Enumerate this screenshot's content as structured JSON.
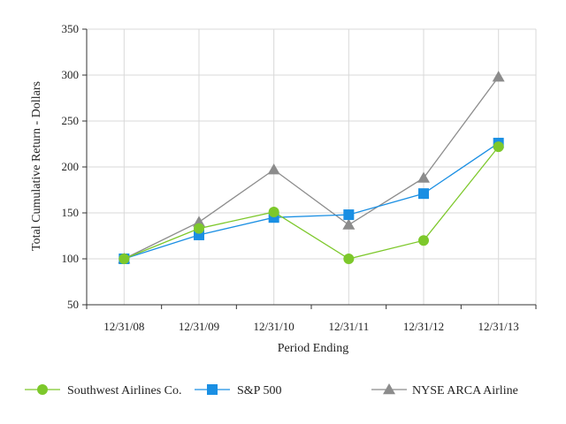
{
  "chart_data": {
    "type": "line",
    "categories": [
      "12/31/08",
      "12/31/09",
      "12/31/10",
      "12/31/11",
      "12/31/12",
      "12/31/13"
    ],
    "series": [
      {
        "name": "Southwest Airlines Co.",
        "values": [
          100,
          133,
          151,
          100,
          120,
          222
        ],
        "color": "#7dc82b",
        "marker": "circle"
      },
      {
        "name": "S&P 500",
        "values": [
          100,
          126,
          145,
          148,
          171,
          226
        ],
        "color": "#1a8fe3",
        "marker": "square"
      },
      {
        "name": "NYSE ARCA Airline",
        "values": [
          100,
          140,
          197,
          137,
          188,
          298
        ],
        "color": "#8c8c8c",
        "marker": "triangle"
      }
    ],
    "xlabel": "Period Ending",
    "ylabel": "Total Cumulative Return - Dollars",
    "ylim": [
      50,
      350
    ],
    "yticks": [
      50,
      100,
      150,
      200,
      250,
      300,
      350
    ],
    "grid": true,
    "legend_position": "bottom"
  }
}
